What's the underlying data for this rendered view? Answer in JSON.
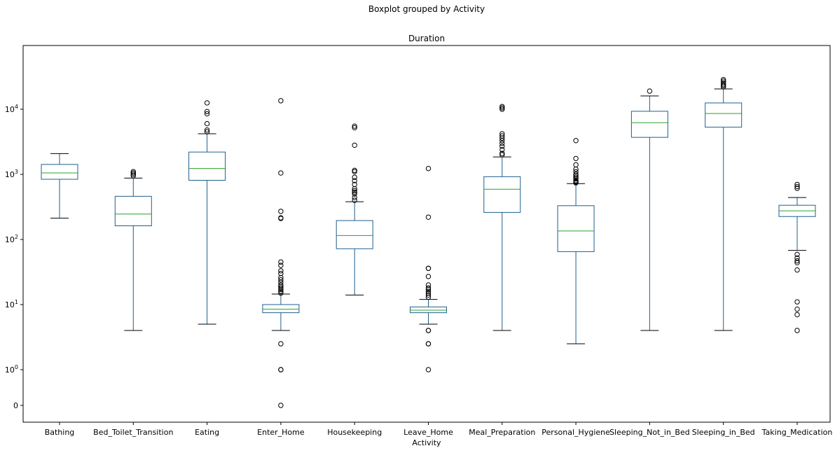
{
  "figure": {
    "suptitle": "Boxplot grouped by Activity",
    "title": "Duration",
    "xlabel": "Activity"
  },
  "style": {
    "box_color": "#1f5f8f",
    "median_color": "#2ca02c",
    "flier_color": "#000000"
  },
  "chart_data": {
    "type": "box",
    "title": "Duration",
    "xlabel": "Activity",
    "ylabel": "",
    "yscale": "symlog",
    "yticks": [
      0,
      1,
      10,
      100,
      1000,
      10000
    ],
    "ytick_labels": [
      {
        "base": "0",
        "exp": ""
      },
      {
        "base": "10",
        "exp": "0"
      },
      {
        "base": "10",
        "exp": "1"
      },
      {
        "base": "10",
        "exp": "2"
      },
      {
        "base": "10",
        "exp": "3"
      },
      {
        "base": "10",
        "exp": "4"
      }
    ],
    "grid": false,
    "categories": [
      "Bathing",
      "Bed_Toilet_Transition",
      "Eating",
      "Enter_Home",
      "Housekeeping",
      "Leave_Home",
      "Meal_Preparation",
      "Personal_Hygiene",
      "Sleeping_Not_in_Bed",
      "Sleeping_in_Bed",
      "Taking_Medication"
    ],
    "boxes": [
      {
        "label": "Bathing",
        "whislo": 212,
        "q1": 840,
        "med": 1050,
        "q3": 1420,
        "whishi": 2080,
        "fliers": []
      },
      {
        "label": "Bed_Toilet_Transition",
        "whislo": 4,
        "q1": 162,
        "med": 245,
        "q3": 460,
        "whishi": 875,
        "fliers": [
          950,
          1000,
          1050,
          1100
        ]
      },
      {
        "label": "Eating",
        "whislo": 5,
        "q1": 810,
        "med": 1230,
        "q3": 2200,
        "whishi": 4200,
        "fliers": [
          4500,
          4800,
          6000,
          8500,
          9200,
          12500
        ]
      },
      {
        "label": "Enter_Home",
        "whislo": 4,
        "q1": 7.5,
        "med": 8.5,
        "q3": 10,
        "whishi": 14.5,
        "fliers": [
          0,
          1,
          1,
          2.5,
          15,
          16,
          17,
          18,
          19,
          20,
          22,
          24,
          26,
          30,
          33,
          40,
          45,
          210,
          215,
          270,
          1050,
          13500
        ]
      },
      {
        "label": "Housekeeping",
        "whislo": 14,
        "q1": 72,
        "med": 115,
        "q3": 195,
        "whishi": 380,
        "fliers": [
          400,
          440,
          500,
          530,
          560,
          600,
          700,
          800,
          900,
          1100,
          1150,
          2800,
          5200,
          5500
        ]
      },
      {
        "label": "Leave_Home",
        "whislo": 5,
        "q1": 7.5,
        "med": 8.2,
        "q3": 9.2,
        "whishi": 12,
        "fliers": [
          1,
          2.5,
          2.5,
          4,
          4,
          13,
          14,
          15,
          16,
          17,
          18,
          20,
          27,
          36,
          36,
          220,
          1230
        ]
      },
      {
        "label": "Meal_Preparation",
        "whislo": 4,
        "q1": 260,
        "med": 590,
        "q3": 920,
        "whishi": 1850,
        "fliers": [
          2000,
          2100,
          2400,
          2700,
          3000,
          3300,
          3600,
          3900,
          4200,
          10000,
          10500,
          11000
        ]
      },
      {
        "label": "Personal_Hygiene",
        "whislo": 2.5,
        "q1": 65,
        "med": 135,
        "q3": 330,
        "whishi": 720,
        "fliers": [
          740,
          760,
          780,
          800,
          850,
          900,
          950,
          1000,
          1100,
          1200,
          1400,
          1750,
          3300
        ]
      },
      {
        "label": "Sleeping_Not_in_Bed",
        "whislo": 4,
        "q1": 3700,
        "med": 6200,
        "q3": 9300,
        "whishi": 16000,
        "fliers": [
          19000
        ]
      },
      {
        "label": "Sleeping_in_Bed",
        "whislo": 4,
        "q1": 5300,
        "med": 8600,
        "q3": 12500,
        "whishi": 20500,
        "fliers": [
          22000,
          23000,
          24000,
          25500,
          27000,
          28500
        ]
      },
      {
        "label": "Taking_Medication",
        "whislo": 68,
        "q1": 225,
        "med": 275,
        "q3": 335,
        "whishi": 440,
        "fliers": [
          4,
          7,
          8.5,
          11,
          34,
          44,
          47,
          52,
          59,
          610,
          650,
          700
        ]
      }
    ]
  }
}
